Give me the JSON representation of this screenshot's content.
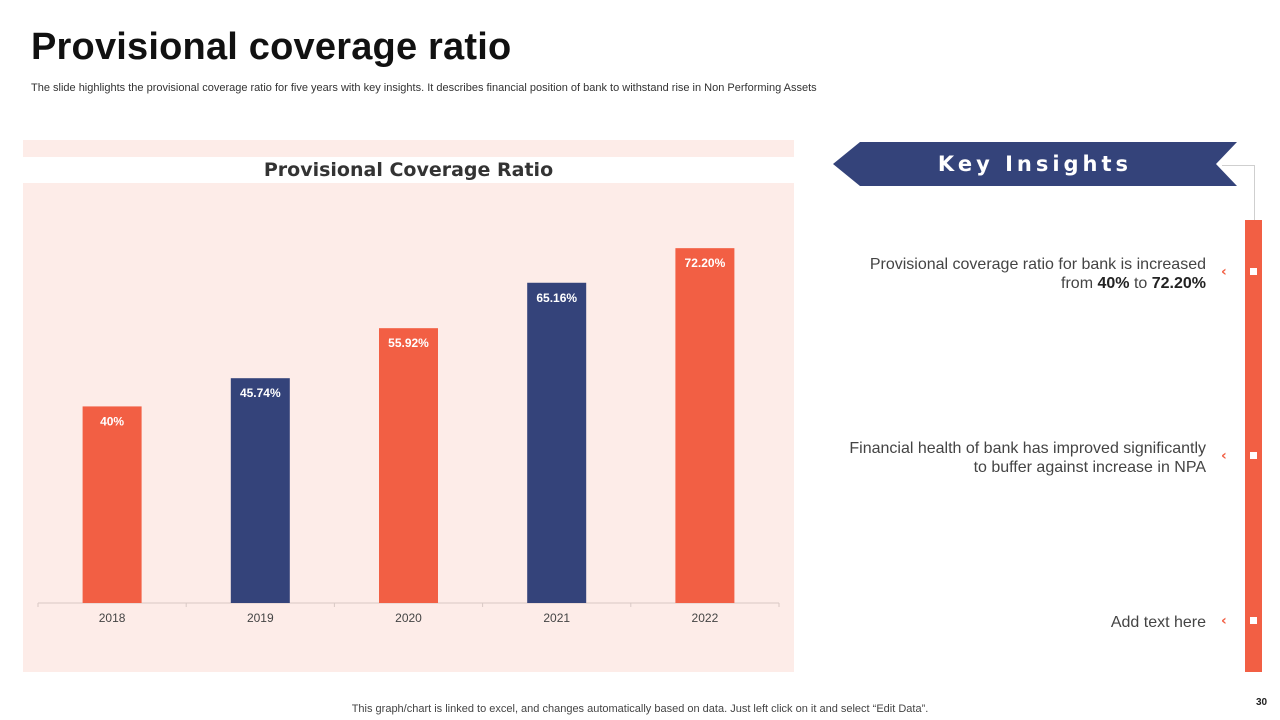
{
  "slide": {
    "title": "Provisional coverage ratio",
    "subtitle": "The slide highlights the provisional coverage ratio for five years with key insights. It describes financial position of bank to withstand rise in Non Performing Assets",
    "footnote": "This graph/chart is linked to excel,  and changes automatically based on data. Just left click on it and select “Edit Data”.",
    "page_number": "30"
  },
  "colors": {
    "accent": "#f25f44",
    "navy": "#34437a",
    "panel_bg": "#fdece8"
  },
  "chart_data": {
    "type": "bar",
    "title": "Provisional Coverage Ratio",
    "categories": [
      "2018",
      "2019",
      "2020",
      "2021",
      "2022"
    ],
    "values": [
      40,
      45.74,
      55.92,
      65.16,
      72.2
    ],
    "data_labels": [
      "40%",
      "45.74%",
      "55.92%",
      "65.16%",
      "72.20%"
    ],
    "bar_colors": [
      "#f25f44",
      "#34437a",
      "#f25f44",
      "#34437a",
      "#f25f44"
    ],
    "ylim": [
      0,
      82
    ],
    "grid": false,
    "legend": "none",
    "xlabel": "",
    "ylabel": ""
  },
  "insights": {
    "heading": "Key Insights",
    "items": [
      {
        "line1": "Provisional coverage ratio for bank is increased",
        "line2_prefix": "from ",
        "line2_bold1": "40%",
        "line2_mid": " to ",
        "line2_bold2": "72.20%"
      },
      {
        "line1": "Financial health  of bank has improved significantly",
        "line2": "to buffer against increase in NPA"
      },
      {
        "line1": "Add text here"
      }
    ]
  }
}
